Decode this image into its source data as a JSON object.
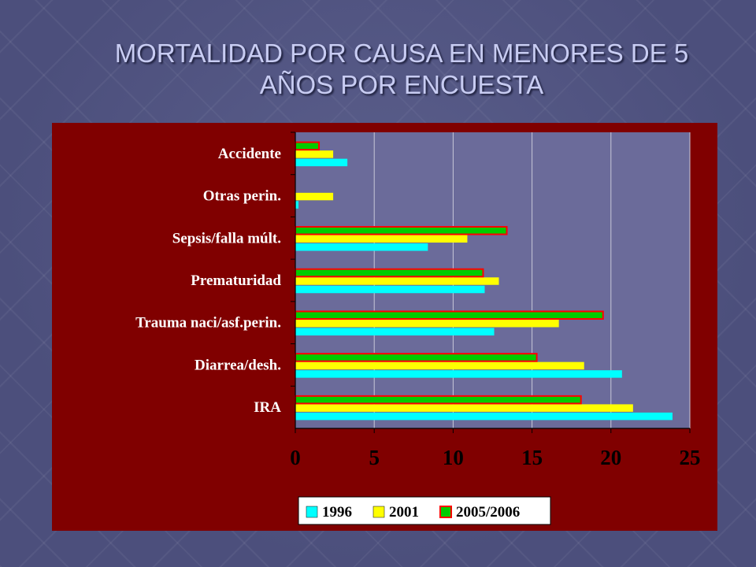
{
  "slide": {
    "title_line1": "MORTALIDAD POR CAUSA EN MENORES DE 5",
    "title_line2": "AÑOS POR ENCUESTA"
  },
  "colors": {
    "background_frame": "#800000",
    "plot_area": "#6b6b9a",
    "series_1996": "#00ffff",
    "series_2001": "#ffff00",
    "series_2005": "#00cc00",
    "series_2005_border": "#ff0000"
  },
  "chart_data": {
    "type": "bar",
    "orientation": "horizontal",
    "title": "",
    "xlabel": "",
    "ylabel": "",
    "xlim": [
      0,
      25
    ],
    "xticks": [
      "0",
      "5",
      "10",
      "15",
      "20",
      "25"
    ],
    "grid": true,
    "legend_position": "bottom",
    "categories": [
      "Accidente",
      "Otras perin.",
      "Sepsis/falla múlt.",
      "Prematuridad",
      "Trauma naci/asf.perin.",
      "Diarrea/desh.",
      "IRA"
    ],
    "series": [
      {
        "name": "1996",
        "values": [
          3.3,
          0.2,
          8.4,
          12.0,
          12.6,
          20.7,
          23.9
        ]
      },
      {
        "name": "2001",
        "values": [
          2.4,
          2.4,
          10.9,
          12.9,
          16.7,
          18.3,
          21.4
        ]
      },
      {
        "name": "2005/2006",
        "values": [
          1.5,
          null,
          13.4,
          11.9,
          19.5,
          15.3,
          18.1
        ]
      }
    ]
  }
}
